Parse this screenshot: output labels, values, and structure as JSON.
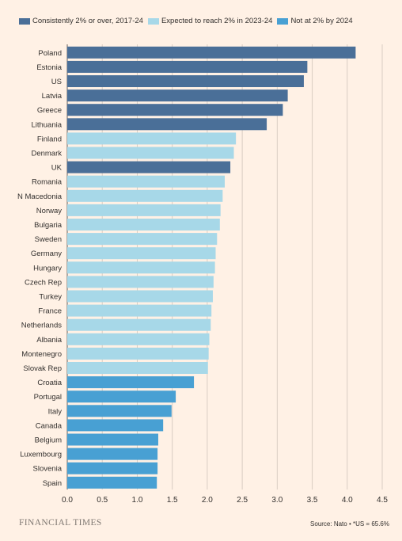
{
  "legend": [
    {
      "label": "Consistently 2% or over, 2017-24",
      "color": "#4a6f98"
    },
    {
      "label": "Expected to reach 2% in 2023-24",
      "color": "#a7d8e8"
    },
    {
      "label": "Not at 2% by 2024",
      "color": "#48a0d3"
    }
  ],
  "footer": {
    "brand": "FINANCIAL TIMES",
    "source": "Source: Nato • *US = 65.6%"
  },
  "chart_data": {
    "type": "bar",
    "orientation": "horizontal",
    "grid": true,
    "xlim": [
      0,
      4.5
    ],
    "xticks": [
      "0.0",
      "0.5",
      "1.0",
      "1.5",
      "2.0",
      "2.5",
      "3.0",
      "3.5",
      "4.0",
      "4.5"
    ],
    "categories": [
      "Poland",
      "Estonia",
      "US",
      "Latvia",
      "Greece",
      "Lithuania",
      "Finland",
      "Denmark",
      "UK",
      "Romania",
      "N Macedonia",
      "Norway",
      "Bulgaria",
      "Sweden",
      "Germany",
      "Hungary",
      "Czech Rep",
      "Turkey",
      "France",
      "Netherlands",
      "Albania",
      "Montenegro",
      "Slovak Rep",
      "Croatia",
      "Portugal",
      "Italy",
      "Canada",
      "Belgium",
      "Luxembourg",
      "Slovenia",
      "Spain"
    ],
    "values": [
      4.12,
      3.43,
      3.38,
      3.15,
      3.08,
      2.85,
      2.41,
      2.38,
      2.33,
      2.25,
      2.22,
      2.19,
      2.18,
      2.14,
      2.12,
      2.11,
      2.09,
      2.08,
      2.06,
      2.05,
      2.03,
      2.02,
      2.01,
      1.81,
      1.55,
      1.49,
      1.37,
      1.3,
      1.29,
      1.29,
      1.28
    ],
    "groups": [
      0,
      0,
      0,
      0,
      0,
      0,
      1,
      1,
      0,
      1,
      1,
      1,
      1,
      1,
      1,
      1,
      1,
      1,
      1,
      1,
      1,
      1,
      1,
      2,
      2,
      2,
      2,
      2,
      2,
      2,
      2
    ]
  }
}
